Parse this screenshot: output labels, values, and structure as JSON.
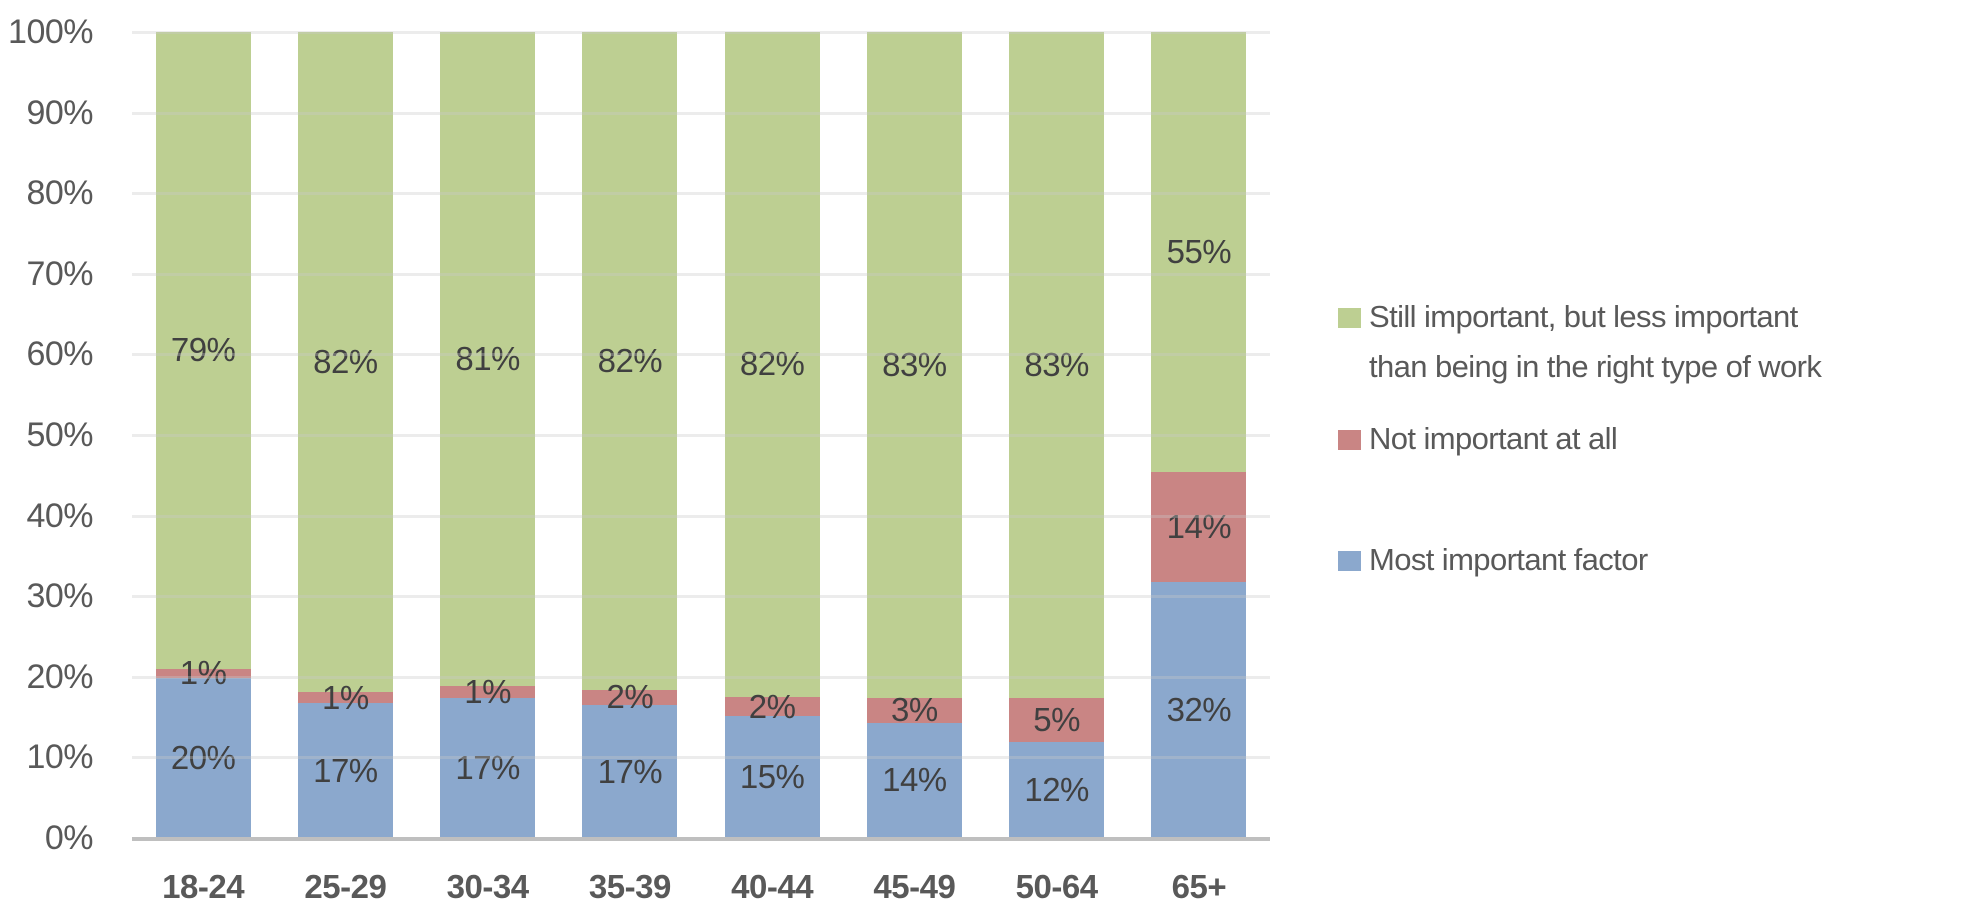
{
  "chart_data": {
    "type": "bar",
    "stacked": true,
    "percent_stacked": true,
    "title": "",
    "xlabel": "",
    "ylabel": "",
    "ylim": [
      0,
      100
    ],
    "yticks": [
      "0%",
      "10%",
      "20%",
      "30%",
      "40%",
      "50%",
      "60%",
      "70%",
      "80%",
      "90%",
      "100%"
    ],
    "grid": true,
    "legend_position": "right",
    "categories": [
      "18-24",
      "25-29",
      "30-34",
      "35-39",
      "40-44",
      "45-49",
      "50-64",
      "65+"
    ],
    "series": [
      {
        "name": "Most important factor",
        "color": "#8ba8cd",
        "values": [
          20,
          17,
          17,
          17,
          15,
          14,
          12,
          32
        ],
        "labels": [
          "20%",
          "17%",
          "17%",
          "17%",
          "15%",
          "14%",
          "12%",
          "32%"
        ]
      },
      {
        "name": "Not important at all",
        "color": "#c98584",
        "values": [
          1,
          1,
          1,
          2,
          2,
          3,
          5,
          14
        ],
        "labels": [
          "1%",
          "1%",
          "1%",
          "2%",
          "2%",
          "3%",
          "5%",
          "14%"
        ]
      },
      {
        "name": "Still important, but less important than being in the right type of work",
        "color": "#bdcf92",
        "values": [
          79,
          82,
          81,
          82,
          82,
          83,
          83,
          55
        ],
        "labels": [
          "79%",
          "82%",
          "81%",
          "82%",
          "82%",
          "83%",
          "83%",
          "55%"
        ]
      }
    ],
    "precise_heights": {
      "Most important factor": [
        19.9,
        16.7,
        17.4,
        16.5,
        15.1,
        14.3,
        11.9,
        31.8
      ],
      "Not important at all": [
        1.1,
        1.4,
        1.5,
        1.9,
        2.4,
        3.1,
        5.5,
        13.6
      ],
      "Still important, but less important than being in the right type of work": [
        79.0,
        81.9,
        81.1,
        81.6,
        82.5,
        82.6,
        82.6,
        54.6
      ]
    }
  },
  "legend": {
    "items": [
      {
        "label_line1": "Still important, but less important",
        "label_line2": "than being in the right type of work",
        "color": "#bdcf92"
      },
      {
        "label_line1": "Not important at all",
        "color": "#c98584"
      },
      {
        "label_line1": "Most important factor",
        "color": "#8ba8cd"
      }
    ]
  },
  "colors": {
    "axis_text": "#595959",
    "data_label": "#404040",
    "gridline": "#d9d9d9",
    "axis_line": "#bfbfbf"
  }
}
